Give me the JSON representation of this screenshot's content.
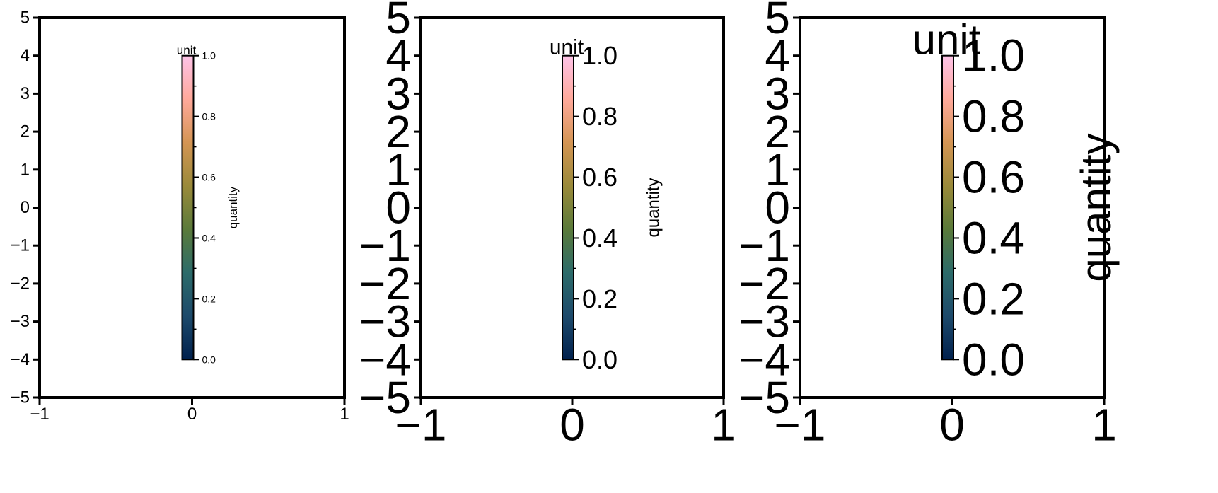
{
  "chart_data": [
    {
      "type": "colorbar",
      "x": {
        "ticks": [
          -1,
          0,
          1
        ],
        "tick_labels": [
          "−1",
          "0",
          "1"
        ],
        "range": [
          -1,
          1
        ]
      },
      "y": {
        "ticks": [
          -5,
          -4,
          -3,
          -2,
          -1,
          0,
          1,
          2,
          3,
          4,
          5
        ],
        "tick_labels": [
          "−5",
          "−4",
          "−3",
          "−2",
          "−1",
          "0",
          "1",
          "2",
          "3",
          "4",
          "5"
        ],
        "range": [
          -5,
          5
        ]
      },
      "colorbar": {
        "label": "quantity",
        "unit": "unit",
        "range": [
          0.0,
          1.0
        ],
        "ticks": [
          0.0,
          0.2,
          0.4,
          0.6,
          0.8,
          1.0
        ],
        "tick_labels": [
          "0.0",
          "0.2",
          "0.4",
          "0.6",
          "0.8",
          "1.0"
        ]
      }
    },
    {
      "type": "colorbar",
      "x": {
        "ticks": [
          -1,
          0,
          1
        ],
        "tick_labels": [
          "−1",
          "0",
          "1"
        ],
        "range": [
          -1,
          1
        ]
      },
      "y": {
        "ticks": [
          -5,
          -4,
          -3,
          -2,
          -1,
          0,
          1,
          2,
          3,
          4,
          5
        ],
        "tick_labels": [
          "−5",
          "−4",
          "−3",
          "−2",
          "−1",
          "0",
          "1",
          "2",
          "3",
          "4",
          "5"
        ],
        "range": [
          -5,
          5
        ]
      },
      "colorbar": {
        "label": "quantity",
        "unit": "unit",
        "range": [
          0.0,
          1.0
        ],
        "ticks": [
          0.0,
          0.2,
          0.4,
          0.6,
          0.8,
          1.0
        ],
        "tick_labels": [
          "0.0",
          "0.2",
          "0.4",
          "0.6",
          "0.8",
          "1.0"
        ]
      }
    },
    {
      "type": "colorbar",
      "x": {
        "ticks": [
          -1,
          0,
          1
        ],
        "tick_labels": [
          "−1",
          "0",
          "1"
        ],
        "range": [
          -1,
          1
        ]
      },
      "y": {
        "ticks": [
          -5,
          -4,
          -3,
          -2,
          -1,
          0,
          1,
          2,
          3,
          4,
          5
        ],
        "tick_labels": [
          "−5",
          "−4",
          "−3",
          "−2",
          "−1",
          "0",
          "1",
          "2",
          "3",
          "4",
          "5"
        ],
        "range": [
          -5,
          5
        ]
      },
      "colorbar": {
        "label": "quantity",
        "unit": "unit",
        "range": [
          0.0,
          1.0
        ],
        "ticks": [
          0.0,
          0.2,
          0.4,
          0.6,
          0.8,
          1.0
        ],
        "tick_labels": [
          "0.0",
          "0.2",
          "0.4",
          "0.6",
          "0.8",
          "1.0"
        ]
      }
    }
  ],
  "colormap": [
    "#00204d",
    "#1d4a6b",
    "#2c6b6a",
    "#5a7a3a",
    "#9a8a3a",
    "#d49554",
    "#ffa99b",
    "#fdc3e8"
  ]
}
